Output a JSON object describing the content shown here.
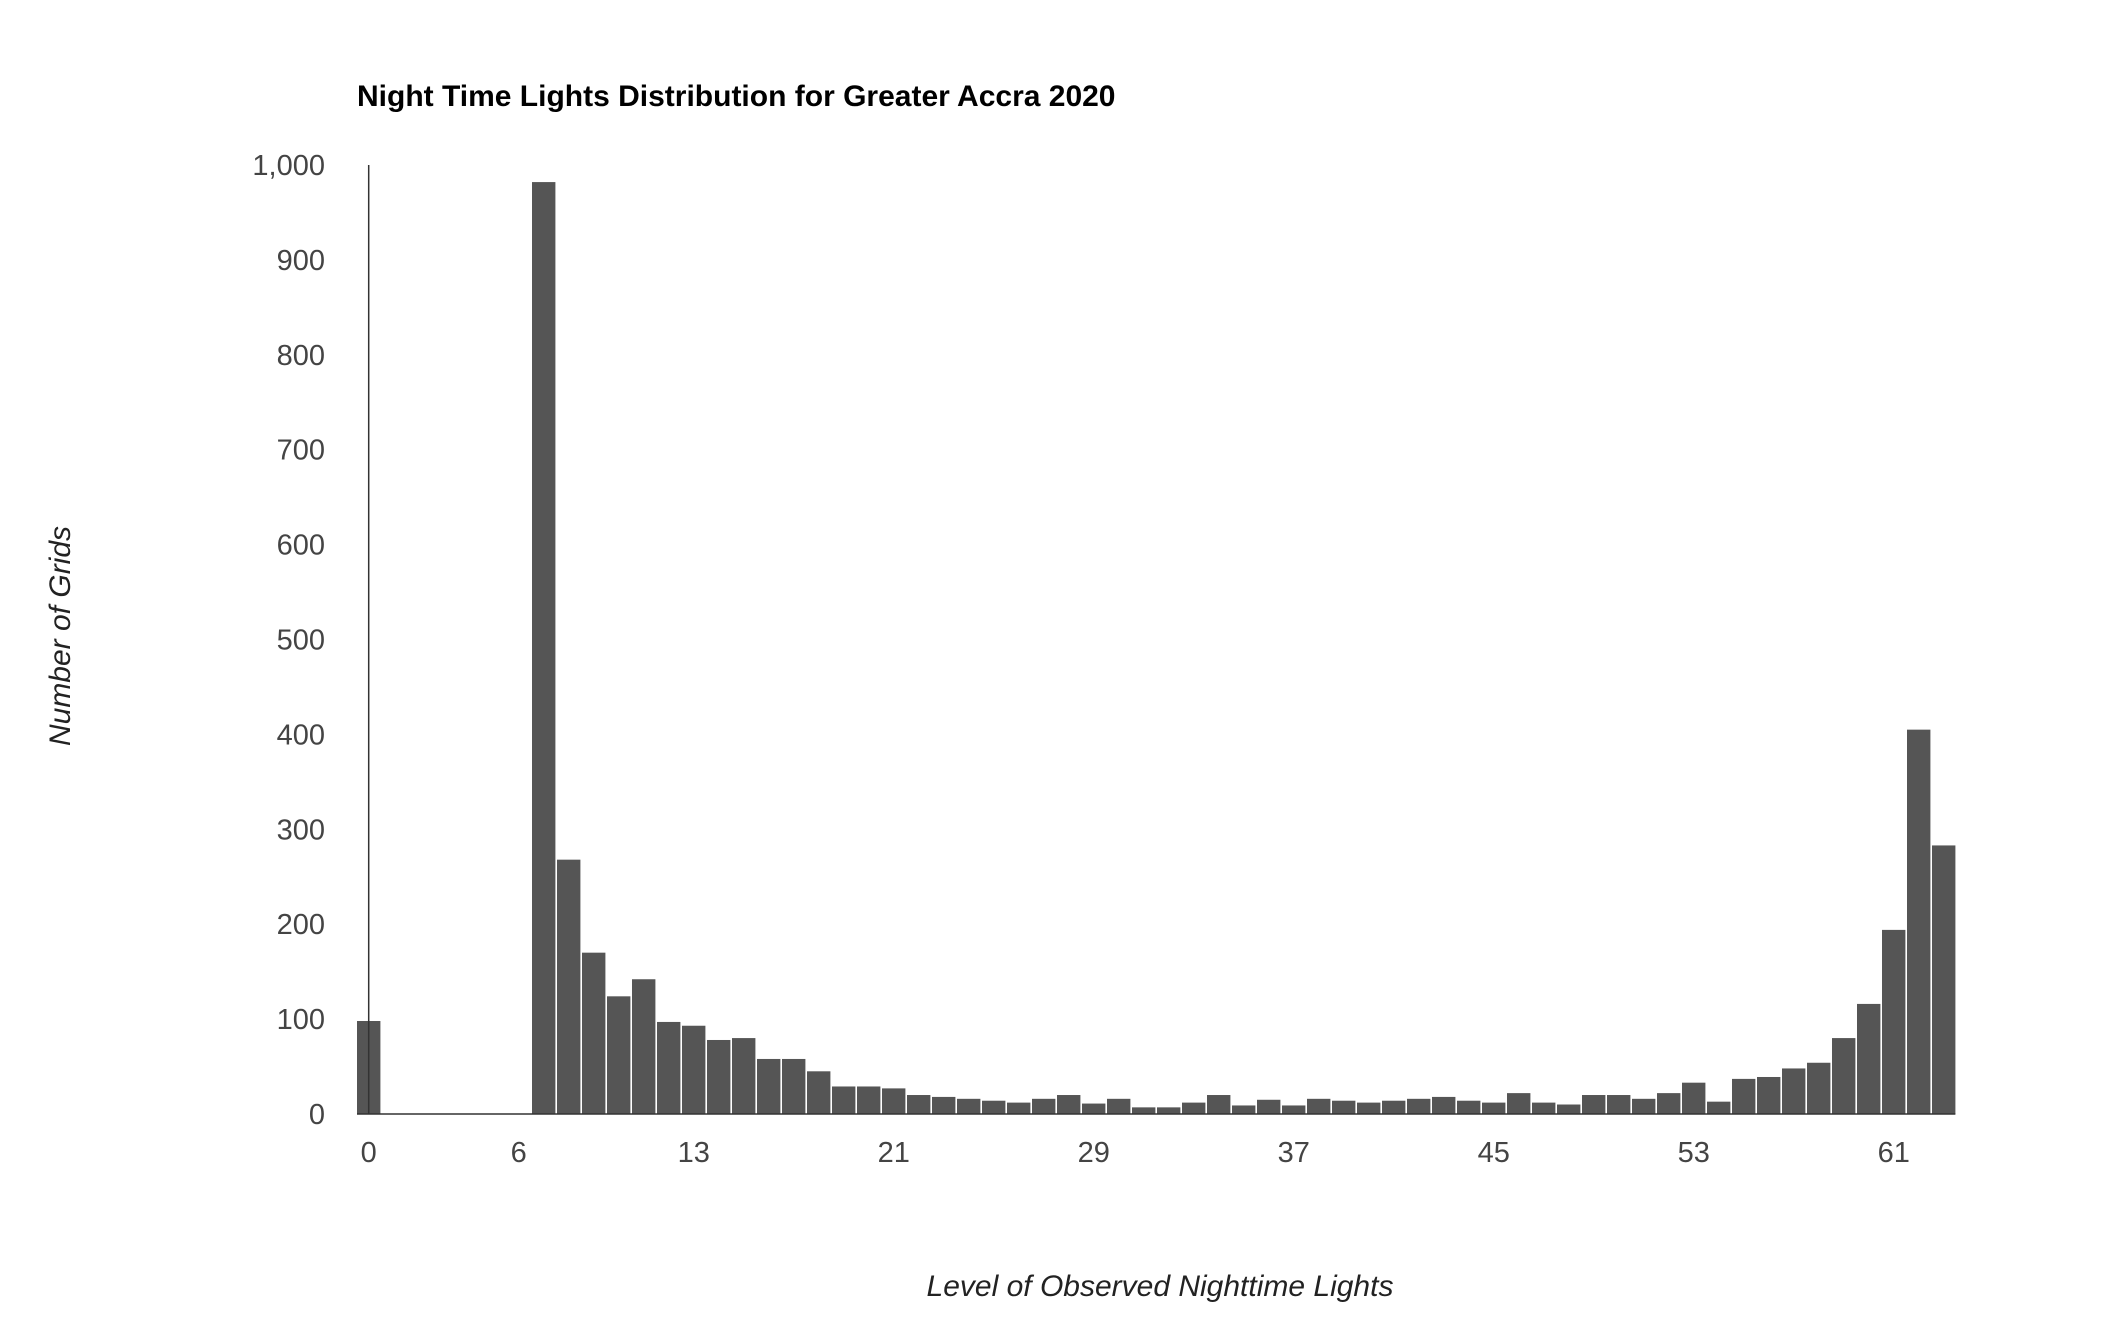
{
  "chart_data": {
    "type": "bar",
    "title": "Night Time Lights Distribution for Greater Accra 2020",
    "xlabel": "Level of Observed Nighttime Lights",
    "ylabel": "Number of Grids",
    "ylim": [
      0,
      1000
    ],
    "yticks": [
      0,
      100,
      200,
      300,
      400,
      500,
      600,
      700,
      800,
      900,
      1000
    ],
    "ytick_labels": [
      "0",
      "100",
      "200",
      "300",
      "400",
      "500",
      "600",
      "700",
      "800",
      "900",
      "1,000"
    ],
    "xticks": [
      0,
      6,
      13,
      21,
      29,
      37,
      45,
      53,
      61
    ],
    "xtick_labels": [
      "0",
      "6",
      "13",
      "21",
      "29",
      "37",
      "45",
      "53",
      "61"
    ],
    "grid": false,
    "legend": "none",
    "bar_color": "#555555",
    "x": [
      0,
      1,
      2,
      3,
      4,
      5,
      6,
      7,
      8,
      9,
      10,
      11,
      12,
      13,
      14,
      15,
      16,
      17,
      18,
      19,
      20,
      21,
      22,
      23,
      24,
      25,
      26,
      27,
      28,
      29,
      30,
      31,
      32,
      33,
      34,
      35,
      36,
      37,
      38,
      39,
      40,
      41,
      42,
      43,
      44,
      45,
      46,
      47,
      48,
      49,
      50,
      51,
      52,
      53,
      54,
      55,
      56,
      57,
      58,
      59,
      60,
      61,
      62,
      63
    ],
    "values": [
      98,
      0,
      0,
      0,
      0,
      0,
      0,
      982,
      268,
      170,
      124,
      142,
      97,
      93,
      78,
      80,
      58,
      58,
      45,
      29,
      29,
      27,
      20,
      18,
      16,
      14,
      12,
      16,
      20,
      11,
      16,
      7,
      7,
      12,
      20,
      9,
      15,
      9,
      16,
      14,
      12,
      14,
      16,
      18,
      14,
      12,
      22,
      12,
      10,
      20,
      20,
      16,
      22,
      33,
      13,
      37,
      39,
      48,
      54,
      80,
      116,
      194,
      405,
      283
    ]
  }
}
